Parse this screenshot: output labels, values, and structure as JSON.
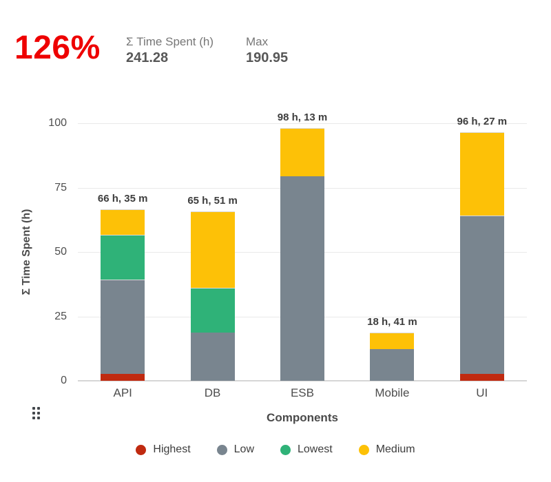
{
  "header": {
    "percent": {
      "value": "126%",
      "color": "#ee0000"
    },
    "stats": [
      {
        "label": "Σ Time Spent (h)",
        "value": "241.28"
      },
      {
        "label": "Max",
        "value": "190.95"
      }
    ]
  },
  "chart_data": {
    "type": "bar",
    "stacked": true,
    "title": "",
    "xlabel": "Components",
    "ylabel": "Σ Time Spent (h)",
    "ylim": [
      0,
      100
    ],
    "yticks": [
      0,
      25,
      50,
      75,
      100
    ],
    "grid": true,
    "legend_position": "bottom",
    "categories": [
      "API",
      "DB",
      "ESB",
      "Mobile",
      "UI"
    ],
    "series": [
      {
        "name": "Highest",
        "color": "#c02a10",
        "values": [
          2.6,
          0,
          0,
          0,
          2.6
        ]
      },
      {
        "name": "Low",
        "color": "#79858f",
        "values": [
          36.6,
          18.7,
          79.4,
          12.2,
          61.65
        ]
      },
      {
        "name": "Lowest",
        "color": "#2fb278",
        "values": [
          17.58,
          17.4,
          0,
          0,
          0
        ]
      },
      {
        "name": "Medium",
        "color": "#fdc107",
        "values": [
          9.8,
          29.75,
          18.82,
          6.48,
          32.2
        ]
      }
    ],
    "totals": [
      66.58,
      65.85,
      98.22,
      18.68,
      96.45
    ],
    "bar_labels": [
      "66 h, 35 m",
      "65 h, 51 m",
      "98 h, 13 m",
      "18 h, 41 m",
      "96 h, 27 m"
    ]
  },
  "icons": {
    "drag_handle": "drag-handle"
  }
}
